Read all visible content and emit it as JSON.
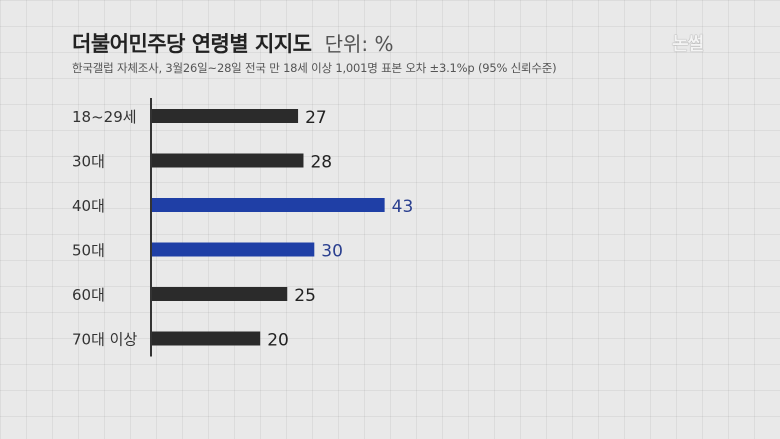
{
  "header": {
    "title": "더불어민주당 연령별 지지도",
    "unit": "단위: %",
    "subtitle": "한국갤럽 자체조사, 3월26일~28일 전국 만 18세 이상 1,001명 표본 오차 ±3.1%p (95% 신뢰수준)",
    "logo_text": "논썰"
  },
  "colors": {
    "default_bar": "#2b2b2b",
    "highlight_bar": "#1f3fa6",
    "highlight_label": "#2a3f8f",
    "axis": "#333333"
  },
  "chart_data": {
    "type": "bar",
    "orientation": "horizontal",
    "title": "더불어민주당 연령별 지지도",
    "unit": "단위: %",
    "categories": [
      "18~29세",
      "30대",
      "40대",
      "50대",
      "60대",
      "70대 이상"
    ],
    "values": [
      27,
      28,
      43,
      30,
      25,
      20
    ],
    "highlighted": [
      "40대",
      "50대"
    ],
    "xlim": [
      0,
      50
    ],
    "grid": true,
    "legend": "none"
  }
}
